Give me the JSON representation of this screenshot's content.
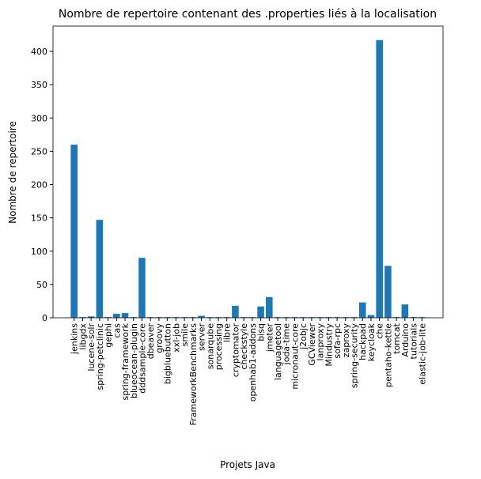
{
  "chart_data": {
    "type": "bar",
    "title": "Nombre de repertoire contenant des .properties liés à la localisation",
    "x_label": "Projets Java",
    "y_label": "Nombre de repertoire",
    "categories": [
      "jenkins",
      "libgdx",
      "lucene-solr",
      "spring-petclinic",
      "gephi",
      "cas",
      "spring-framework",
      "blueocean-plugin",
      "dddsample-core",
      "dbeaver",
      "groovy",
      "bigbluebutton",
      "xxl-job",
      "smile",
      "FrameworkBenchmarks",
      "server",
      "sonarqube",
      "processing",
      "libre",
      "cryptomator",
      "checkstyle",
      "openhab1-addons",
      "bisq",
      "jmeter",
      "languagetool",
      "joda-time",
      "micronaut-core",
      "j2objc",
      "GCViewer",
      "lanproxy",
      "Mindustry",
      "sofa-rpc",
      "zaproxy",
      "spring-security",
      "hackpad",
      "keycloak",
      "che",
      "pentaho-kettle",
      "tomcat",
      "Arduino",
      "tutorials",
      "elastic-job-lite"
    ],
    "values": [
      260,
      1,
      2,
      147,
      1,
      6,
      7,
      1,
      90,
      1,
      1,
      1,
      1,
      1,
      1,
      3,
      1,
      1,
      1,
      18,
      1,
      1,
      17,
      31,
      1,
      1,
      1,
      1,
      1,
      1,
      1,
      1,
      1,
      1,
      23,
      4,
      417,
      78,
      1,
      20,
      1,
      1
    ],
    "color": "#1f77b4",
    "ylim": [
      0,
      438
    ],
    "yticks": [
      0,
      50,
      100,
      150,
      200,
      250,
      300,
      350,
      400
    ]
  }
}
